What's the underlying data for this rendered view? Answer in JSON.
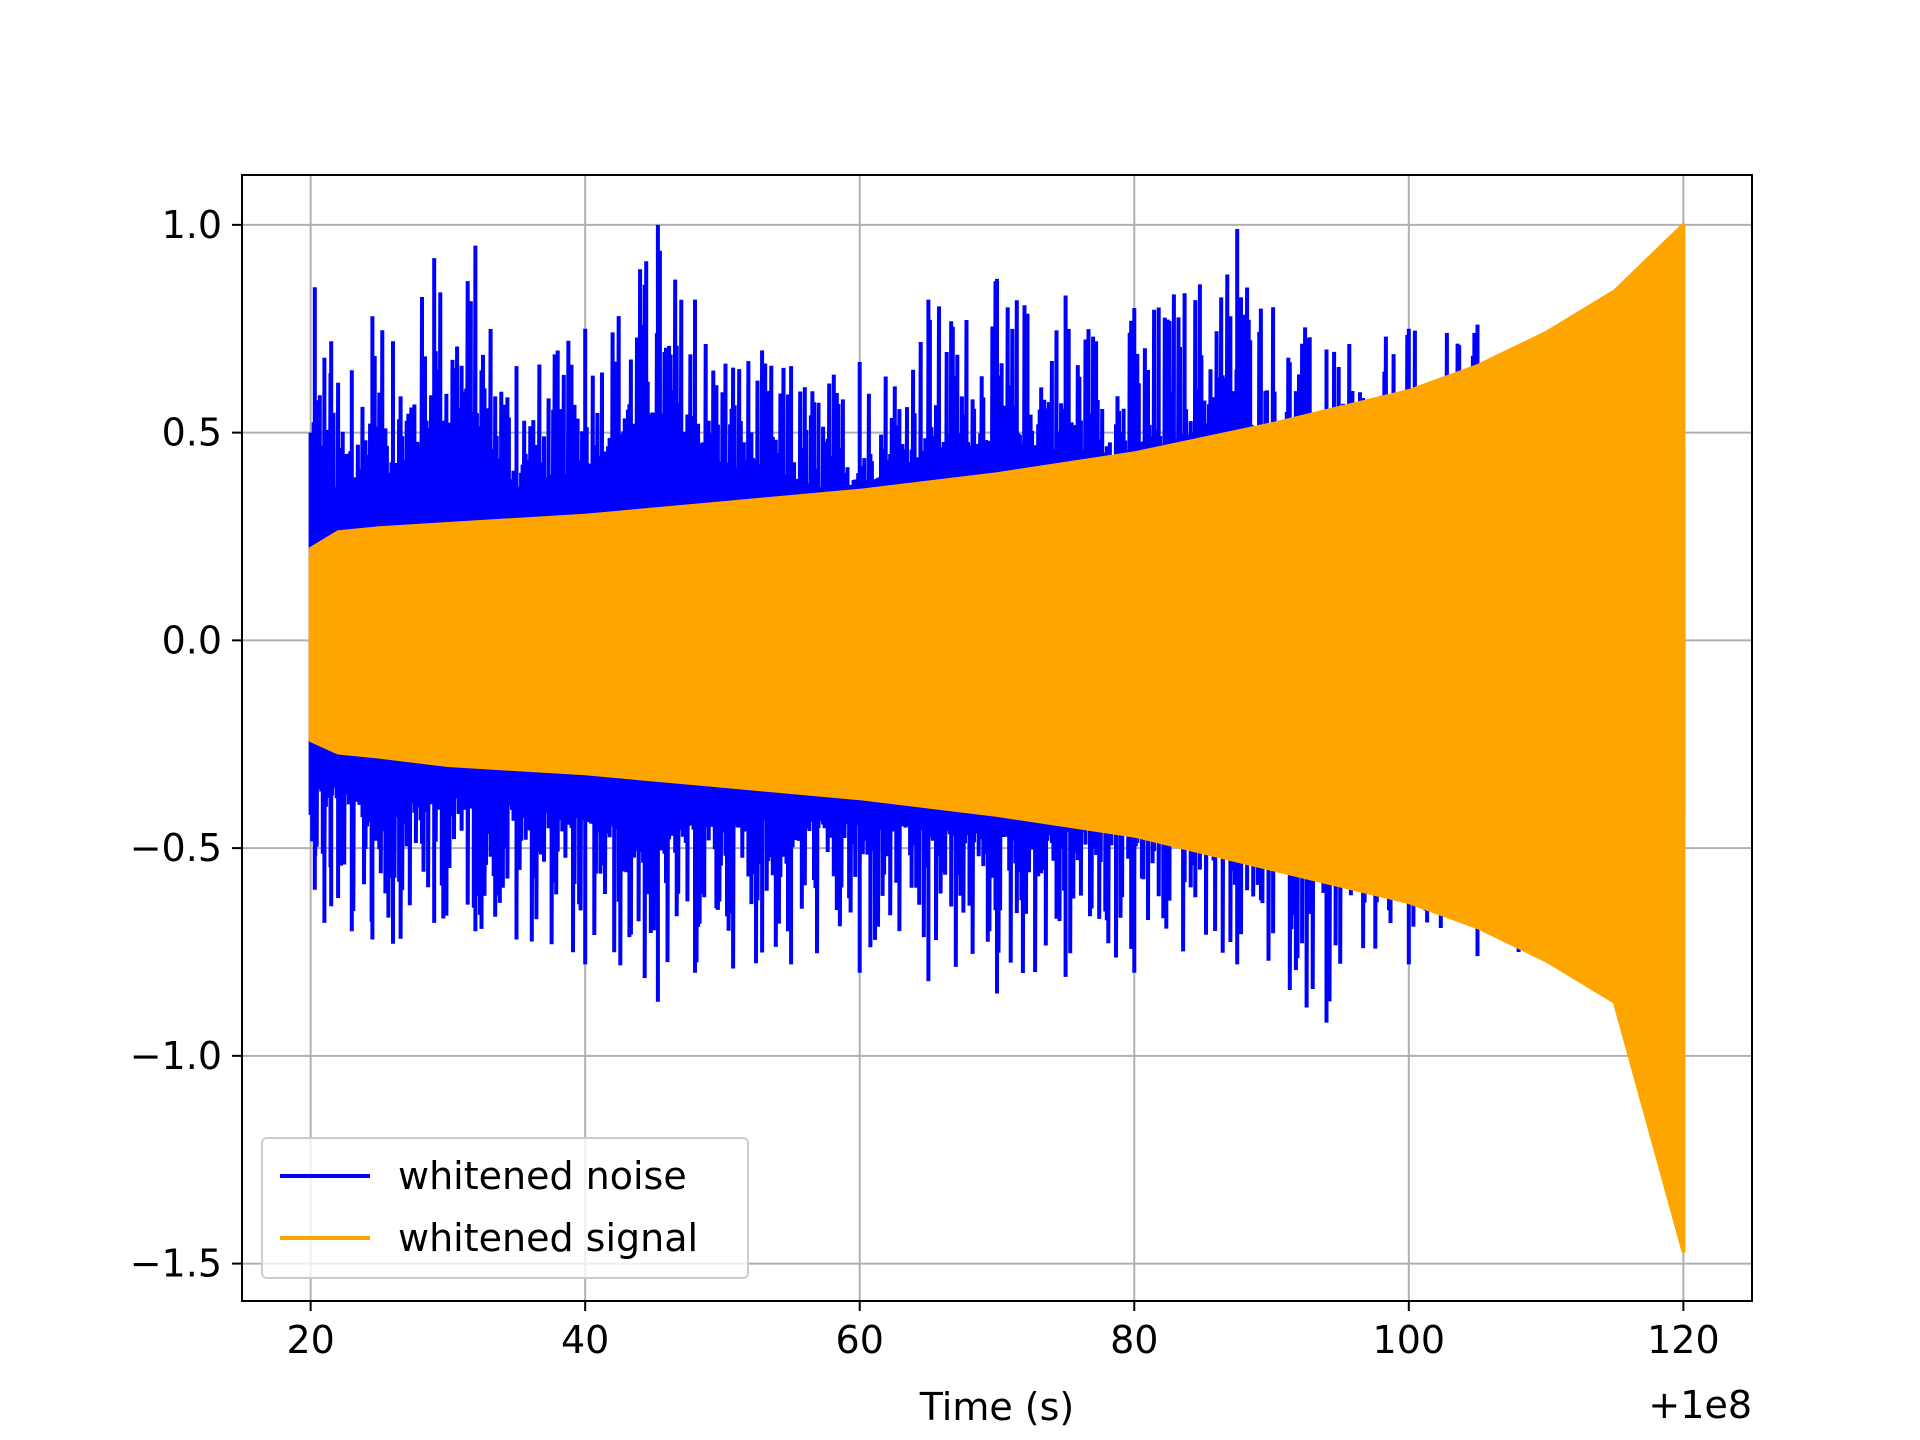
{
  "chart_data": {
    "type": "line",
    "xlabel": "Time (s)",
    "ylabel": "",
    "x_offset_label": "+1e8",
    "xlim": [
      15,
      125
    ],
    "ylim": [
      -1.59,
      1.12
    ],
    "grid": true,
    "legend": "lower-left",
    "x_ticks": [
      20,
      40,
      60,
      80,
      100,
      120
    ],
    "x_tick_labels": [
      "20",
      "40",
      "60",
      "80",
      "100",
      "120"
    ],
    "y_ticks": [
      1.0,
      0.5,
      0.0,
      -0.5,
      -1.0,
      -1.5
    ],
    "y_tick_labels": [
      "1.0",
      "0.5",
      "0.0",
      "−0.5",
      "−1.0",
      "−1.5"
    ],
    "series": [
      {
        "name": "whitened noise",
        "color": "#0000ff",
        "x": [
          20,
          20.3,
          21,
          21.5,
          22,
          23,
          24.5,
          26,
          29,
          32,
          35,
          40,
          45.3,
          48,
          55,
          60,
          65,
          70,
          75,
          80,
          87.5,
          94,
          100,
          105,
          108
        ],
        "y_max": [
          0.5,
          0.85,
          0.68,
          0.72,
          0.62,
          0.65,
          0.78,
          0.72,
          0.92,
          0.95,
          0.66,
          0.75,
          1.0,
          0.82,
          0.66,
          0.67,
          0.82,
          0.87,
          0.83,
          0.8,
          0.99,
          0.7,
          0.75,
          0.76,
          0.7
        ],
        "y_min": [
          -0.42,
          -0.6,
          -0.68,
          -0.64,
          -0.62,
          -0.7,
          -0.72,
          -0.73,
          -0.68,
          -0.7,
          -0.72,
          -0.78,
          -0.87,
          -0.8,
          -0.78,
          -0.8,
          -0.82,
          -0.85,
          -0.81,
          -0.8,
          -0.78,
          -0.92,
          -0.78,
          -0.76,
          -0.75
        ]
      },
      {
        "name": "whitened signal",
        "color": "#ffa500",
        "x": [
          20,
          22,
          25,
          30,
          40,
          50,
          60,
          70,
          80,
          90,
          100,
          105,
          110,
          115,
          120
        ],
        "y_max": [
          0.22,
          0.26,
          0.27,
          0.28,
          0.3,
          0.33,
          0.36,
          0.4,
          0.45,
          0.52,
          0.6,
          0.66,
          0.74,
          0.84,
          1.0
        ],
        "y_min": [
          -0.24,
          -0.27,
          -0.28,
          -0.3,
          -0.32,
          -0.35,
          -0.38,
          -0.42,
          -0.47,
          -0.55,
          -0.63,
          -0.69,
          -0.77,
          -0.87,
          -1.47
        ]
      }
    ]
  }
}
